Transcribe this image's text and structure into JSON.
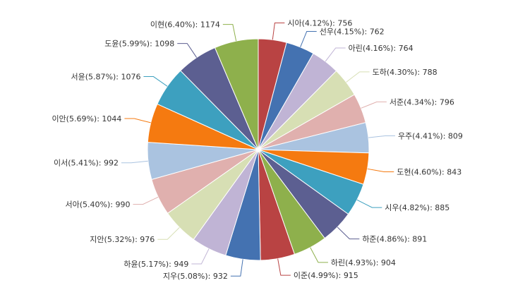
{
  "chart_data": {
    "type": "pie",
    "title": "",
    "label_format": "{name}({percent}%): {value}",
    "slices": [
      {
        "name": "시아",
        "value": 756,
        "percent": "4.12",
        "color": "#b94343"
      },
      {
        "name": "선우",
        "value": 762,
        "percent": "4.15",
        "color": "#4472b1"
      },
      {
        "name": "아린",
        "value": 764,
        "percent": "4.16",
        "color": "#c0b4d5"
      },
      {
        "name": "도하",
        "value": 788,
        "percent": "4.30",
        "color": "#d7dfb4"
      },
      {
        "name": "서준",
        "value": 796,
        "percent": "4.34",
        "color": "#e0b0ae"
      },
      {
        "name": "우주",
        "value": 809,
        "percent": "4.41",
        "color": "#aac3e0"
      },
      {
        "name": "도현",
        "value": 843,
        "percent": "4.60",
        "color": "#f57a10"
      },
      {
        "name": "시우",
        "value": 885,
        "percent": "4.82",
        "color": "#3da0bf"
      },
      {
        "name": "하준",
        "value": 891,
        "percent": "4.86",
        "color": "#5c5f91"
      },
      {
        "name": "하린",
        "value": 904,
        "percent": "4.93",
        "color": "#8eb04c"
      },
      {
        "name": "이준",
        "value": 915,
        "percent": "4.99",
        "color": "#b94343"
      },
      {
        "name": "지우",
        "value": 932,
        "percent": "5.08",
        "color": "#4472b1"
      },
      {
        "name": "하윤",
        "value": 949,
        "percent": "5.17",
        "color": "#c0b4d5"
      },
      {
        "name": "지안",
        "value": 976,
        "percent": "5.32",
        "color": "#d7dfb4"
      },
      {
        "name": "서아",
        "value": 990,
        "percent": "5.40",
        "color": "#e0b0ae"
      },
      {
        "name": "이서",
        "value": 992,
        "percent": "5.41",
        "color": "#aac3e0"
      },
      {
        "name": "이안",
        "value": 1044,
        "percent": "5.69",
        "color": "#f57a10"
      },
      {
        "name": "서윤",
        "value": 1076,
        "percent": "5.87",
        "color": "#3da0bf"
      },
      {
        "name": "도윤",
        "value": 1098,
        "percent": "5.99",
        "color": "#5c5f91"
      },
      {
        "name": "이현",
        "value": 1174,
        "percent": "6.40",
        "color": "#8eb04c"
      }
    ]
  }
}
